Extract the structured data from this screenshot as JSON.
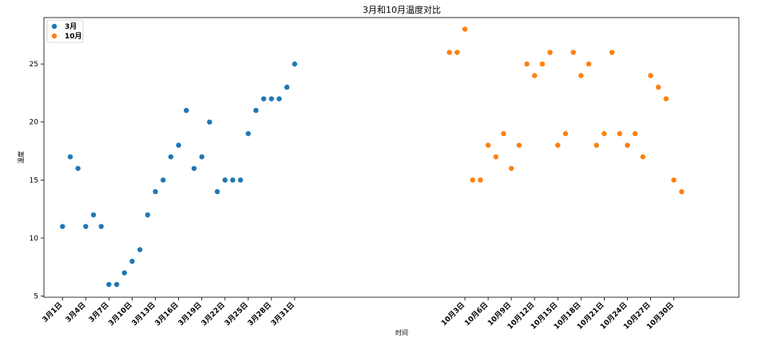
{
  "chart_data": {
    "type": "scatter",
    "title": "3月和10月温度对比",
    "xlabel": "时间",
    "ylabel": "温度",
    "ylim": [
      4.9,
      29.0
    ],
    "yticks": [
      5,
      10,
      15,
      20,
      25
    ],
    "grid": false,
    "legend_position": "top-left",
    "series": [
      {
        "name": "3月",
        "color": "#1f77b4",
        "x": [
          1,
          2,
          3,
          4,
          5,
          6,
          7,
          8,
          9,
          10,
          11,
          12,
          13,
          14,
          15,
          16,
          17,
          18,
          19,
          20,
          21,
          22,
          23,
          24,
          25,
          26,
          27,
          28,
          29,
          30,
          31
        ],
        "values": [
          11,
          17,
          16,
          11,
          12,
          11,
          6,
          6,
          7,
          8,
          9,
          12,
          14,
          15,
          17,
          18,
          21,
          16,
          17,
          20,
          14,
          15,
          15,
          15,
          19,
          21,
          22,
          22,
          22,
          23,
          25
        ]
      },
      {
        "name": "10月",
        "color": "#ff7f0e",
        "x": [
          51,
          52,
          53,
          54,
          55,
          56,
          57,
          58,
          59,
          60,
          61,
          62,
          63,
          64,
          65,
          66,
          67,
          68,
          69,
          70,
          71,
          72,
          73,
          74,
          75,
          76,
          77,
          78,
          79,
          80,
          81
        ],
        "values": [
          26,
          26,
          28,
          15,
          15,
          18,
          17,
          19,
          16,
          18,
          25,
          24,
          25,
          26,
          18,
          19,
          26,
          24,
          25,
          18,
          19,
          26,
          19,
          18,
          19,
          17,
          24,
          23,
          22,
          15,
          14
        ]
      }
    ],
    "xlim": [
      -1.4,
      88.4
    ],
    "xticks": [
      1,
      4,
      7,
      10,
      13,
      16,
      19,
      22,
      25,
      28,
      31,
      53,
      56,
      59,
      62,
      65,
      68,
      71,
      74,
      77,
      80
    ],
    "xtick_labels": [
      "3月1日",
      "3月4日",
      "3月7日",
      "3月10日",
      "3月13日",
      "3月16日",
      "3月19日",
      "3月22日",
      "3月25日",
      "3月28日",
      "3月31日",
      "10月3日",
      "10月6日",
      "10月9日",
      "10月12日",
      "10月15日",
      "10月18日",
      "10月21日",
      "10月24日",
      "10月27日",
      "10月30日"
    ]
  }
}
